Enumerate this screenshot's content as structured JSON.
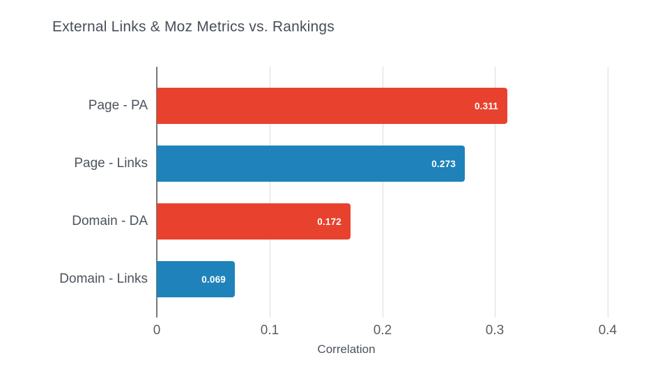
{
  "chart_data": {
    "type": "bar",
    "orientation": "horizontal",
    "title": "External Links & Moz Metrics vs. Rankings",
    "xlabel": "Correlation",
    "ylabel": "",
    "categories": [
      "Page - PA",
      "Page - Links",
      "Domain - DA",
      "Domain - Links"
    ],
    "values": [
      0.311,
      0.273,
      0.172,
      0.069
    ],
    "value_labels": [
      "0.311",
      "0.273",
      "0.172",
      "0.069"
    ],
    "bar_colors": [
      "#e8422f",
      "#1f82ba",
      "#e8422f",
      "#1f82ba"
    ],
    "xlim": [
      0,
      0.4235
    ],
    "xticks": [
      0,
      0.1,
      0.2,
      0.3,
      0.4
    ],
    "xtick_labels": [
      "0",
      "0.1",
      "0.2",
      "0.3",
      "0.4"
    ],
    "grid": "vertical-gridlines",
    "legend": "none"
  },
  "colors": {
    "bar_red": "#e8422f",
    "bar_blue": "#1f82ba",
    "gridline": "#d9dbdd",
    "axis_line": "#75777a",
    "title_text": "#474e58",
    "label_text": "#4c535c",
    "tick_text": "#575d64",
    "value_text": "#ffffff",
    "background": "#ffffff"
  }
}
